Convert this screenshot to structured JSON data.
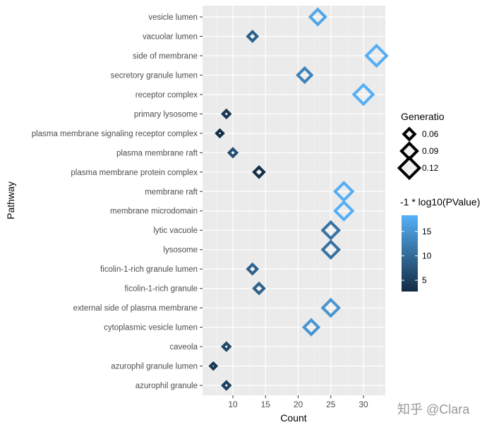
{
  "chart_data": {
    "type": "scatter",
    "xlabel": "Count",
    "ylabel": "Pathway",
    "xlim": [
      5.35,
      33.35
    ],
    "xticks": [
      10,
      15,
      20,
      25,
      30
    ],
    "grid": true,
    "categories": [
      "vesicle lumen",
      "vacuolar lumen",
      "side of membrane",
      "secretory granule lumen",
      "receptor complex",
      "primary lysosome",
      "plasma membrane signaling receptor complex",
      "plasma membrane raft",
      "plasma membrane protein complex",
      "membrane raft",
      "membrane microdomain",
      "lytic vacuole",
      "lysosome",
      "ficolin-1-rich granule lumen",
      "ficolin-1-rich granule",
      "external side of plasma membrane",
      "cytoplasmic vesicle lumen",
      "caveola",
      "azurophil granule lumen",
      "azurophil granule"
    ],
    "count": [
      23,
      13,
      32,
      21,
      30,
      9,
      8,
      10,
      14,
      27,
      27,
      25,
      25,
      13,
      14,
      25,
      22,
      9,
      7,
      9
    ],
    "neg_log10_pvalue": [
      17,
      9,
      18,
      13,
      18,
      4,
      3,
      7,
      3,
      18,
      18,
      11,
      11,
      9,
      9,
      15,
      15,
      6,
      4,
      5
    ],
    "gene_ratio": [
      0.087,
      0.049,
      0.12,
      0.079,
      0.113,
      0.034,
      0.03,
      0.038,
      0.053,
      0.102,
      0.102,
      0.094,
      0.094,
      0.049,
      0.053,
      0.094,
      0.083,
      0.034,
      0.026,
      0.034
    ],
    "legend_size": {
      "title": "Generatio",
      "values": [
        0.06,
        0.09,
        0.12
      ],
      "labels": [
        "0.06",
        "0.09",
        "0.12"
      ]
    },
    "legend_color": {
      "title": "-1 * log10(PValue)",
      "range": [
        2.7,
        18.3
      ],
      "ticks": [
        5,
        10,
        15
      ],
      "labels": [
        "5",
        "10",
        "15"
      ],
      "low": "#132B43",
      "high": "#56B1F7"
    },
    "legend_placement": "right",
    "marker": "diamond-open"
  },
  "watermark": "知乎 @Clara"
}
